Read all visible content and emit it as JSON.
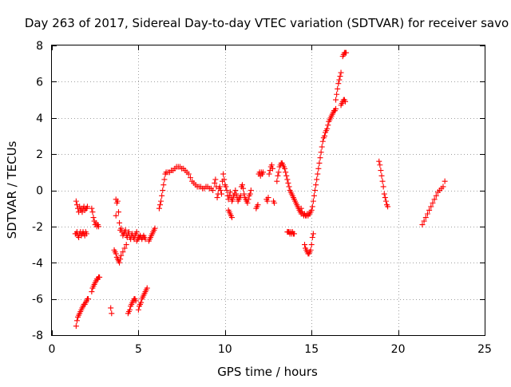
{
  "chart_data": {
    "type": "scatter",
    "title": "Day 263 of 2017, Sidereal Day-to-day VTEC variation (SDTVAR) for receiver savo",
    "xlabel": "GPS time / hours",
    "ylabel": "SDTVAR / TECUs",
    "xlim": [
      0,
      25
    ],
    "ylim": [
      -8,
      8
    ],
    "xticks": [
      0,
      5,
      10,
      15,
      20,
      25
    ],
    "yticks": [
      -8,
      -6,
      -4,
      -2,
      0,
      2,
      4,
      6,
      8
    ],
    "xtick_labels": [
      "0",
      "5",
      "10",
      "15",
      "20",
      "25"
    ],
    "ytick_labels": [
      "-8",
      "-6",
      "-4",
      "-2",
      "0",
      "2",
      "4",
      "6",
      "8"
    ],
    "grid": true,
    "legend": "none",
    "marker": "plus",
    "color": "#ff0000",
    "series": [
      {
        "segments": [
          {
            "x": [
              1.4,
              1.45,
              1.5,
              1.55,
              1.6,
              1.65,
              1.7,
              1.75,
              1.8,
              1.85,
              1.9,
              1.95,
              2.0,
              2.05,
              2.1
            ],
            "y": [
              -7.5,
              -7.2,
              -7.0,
              -6.9,
              -6.8,
              -6.7,
              -6.6,
              -6.5,
              -6.4,
              -6.3,
              -6.3,
              -6.2,
              -6.1,
              -6.0,
              -6.0
            ]
          },
          {
            "x": [
              1.35,
              1.4,
              1.45,
              1.5,
              1.55,
              1.6,
              1.65,
              1.7,
              1.75,
              1.8,
              1.85,
              1.9,
              1.95,
              2.0
            ],
            "y": [
              -2.4,
              -2.4,
              -2.3,
              -2.5,
              -2.6,
              -2.4,
              -2.3,
              -2.5,
              -2.4,
              -2.3,
              -2.4,
              -2.5,
              -2.3,
              -2.4
            ]
          },
          {
            "x": [
              1.4,
              1.45,
              1.5,
              1.55,
              1.6,
              1.65,
              1.7,
              1.75,
              1.8,
              1.85,
              1.9,
              1.95,
              2.0,
              2.05
            ],
            "y": [
              -0.6,
              -0.8,
              -1.0,
              -1.2,
              -0.9,
              -1.1,
              -1.0,
              -1.2,
              -1.0,
              -0.9,
              -1.1,
              -1.0,
              -1.0,
              -0.9
            ]
          },
          {
            "x": [
              2.3,
              2.35,
              2.4,
              2.45,
              2.5,
              2.55,
              2.6,
              2.65,
              2.7,
              2.75
            ],
            "y": [
              -5.6,
              -5.4,
              -5.3,
              -5.2,
              -5.1,
              -5.0,
              -4.9,
              -4.9,
              -4.8,
              -4.8
            ]
          },
          {
            "x": [
              2.3,
              2.35,
              2.4,
              2.45,
              2.5,
              2.55,
              2.6,
              2.65,
              2.7
            ],
            "y": [
              -1.0,
              -1.2,
              -1.5,
              -1.7,
              -1.9,
              -1.8,
              -2.0,
              -1.9,
              -2.0
            ]
          },
          {
            "x": [
              3.4,
              3.45,
              3.7
            ],
            "y": [
              -6.5,
              -6.8,
              -1.4
            ]
          },
          {
            "x": [
              3.7,
              3.75,
              3.8,
              3.85,
              3.9,
              3.95,
              4.0,
              4.05,
              4.1,
              4.15,
              4.2,
              4.25,
              4.3,
              4.35,
              4.4,
              4.45,
              4.5,
              4.55,
              4.6,
              4.65,
              4.7,
              4.75,
              4.8,
              4.85,
              4.9
            ],
            "y": [
              -0.5,
              -0.7,
              -0.6,
              -1.2,
              -1.8,
              -2.2,
              -2.1,
              -2.3,
              -2.5,
              -2.4,
              -2.3,
              -2.2,
              -2.5,
              -2.6,
              -2.4,
              -2.3,
              -2.6,
              -2.7,
              -2.5,
              -2.4,
              -2.6,
              -2.7,
              -2.5,
              -2.4,
              -2.3
            ]
          },
          {
            "x": [
              3.6,
              3.65,
              3.7,
              3.75,
              3.8,
              3.85,
              3.9,
              3.95,
              4.0,
              4.1,
              4.2,
              4.3
            ],
            "y": [
              -3.3,
              -3.4,
              -3.5,
              -3.7,
              -3.8,
              -3.9,
              -4.0,
              -3.8,
              -3.6,
              -3.4,
              -3.2,
              -3.0
            ]
          },
          {
            "x": [
              4.4,
              4.45,
              4.5,
              4.55,
              4.6,
              4.65,
              4.7,
              4.75,
              4.8,
              4.85
            ],
            "y": [
              -6.8,
              -6.7,
              -6.6,
              -6.4,
              -6.3,
              -6.2,
              -6.1,
              -6.0,
              -6.0,
              -6.1
            ]
          },
          {
            "x": [
              4.9,
              4.95,
              5.0,
              5.05,
              5.1,
              5.15,
              5.2,
              5.25,
              5.3,
              5.35,
              5.4
            ],
            "y": [
              -2.8,
              -2.7,
              -2.6,
              -2.6,
              -2.5,
              -2.6,
              -2.7,
              -2.6,
              -2.5,
              -2.6,
              -2.7
            ]
          },
          {
            "x": [
              5.0,
              5.05,
              5.1,
              5.15,
              5.2,
              5.25,
              5.3,
              5.35,
              5.4,
              5.45,
              5.5
            ],
            "y": [
              -6.6,
              -6.4,
              -6.3,
              -6.2,
              -6.0,
              -5.9,
              -5.8,
              -5.7,
              -5.6,
              -5.5,
              -5.4
            ]
          },
          {
            "x": [
              5.6,
              5.65,
              5.7,
              5.75,
              5.8,
              5.85,
              5.9,
              5.95
            ],
            "y": [
              -2.8,
              -2.7,
              -2.6,
              -2.5,
              -2.4,
              -2.3,
              -2.2,
              -2.1
            ]
          },
          {
            "x": [
              6.2,
              6.25,
              6.3,
              6.35,
              6.4,
              6.45,
              6.5,
              6.55,
              6.6,
              6.7,
              6.8,
              6.9,
              7.0,
              7.1,
              7.2,
              7.3,
              7.4,
              7.5,
              7.6,
              7.7,
              7.8,
              7.9,
              8.0,
              8.1,
              8.2,
              8.3,
              8.4,
              8.5,
              8.6,
              8.7,
              8.8,
              8.9,
              9.0,
              9.1,
              9.2,
              9.3
            ],
            "y": [
              -1.0,
              -0.8,
              -0.6,
              -0.3,
              0.0,
              0.3,
              0.6,
              0.9,
              1.0,
              1.0,
              1.0,
              1.1,
              1.1,
              1.2,
              1.3,
              1.3,
              1.3,
              1.2,
              1.2,
              1.1,
              1.0,
              0.9,
              0.7,
              0.5,
              0.4,
              0.3,
              0.2,
              0.2,
              0.2,
              0.1,
              0.1,
              0.2,
              0.2,
              0.1,
              0.1,
              0.0
            ]
          },
          {
            "x": [
              9.4,
              9.45,
              9.5,
              9.55,
              9.6,
              9.65,
              9.7,
              9.75,
              9.8,
              9.85,
              9.9,
              9.95,
              10.0,
              10.05,
              10.1,
              10.15,
              10.2,
              10.25,
              10.3,
              10.35,
              10.4,
              10.45,
              10.5,
              10.55,
              10.6,
              10.65,
              10.7,
              10.75,
              10.8,
              10.85,
              10.9,
              10.95,
              11.0,
              11.05,
              11.1,
              11.15,
              11.2,
              11.25,
              11.3,
              11.35,
              11.4,
              11.45,
              11.5
            ],
            "y": [
              0.4,
              0.6,
              0.2,
              -0.4,
              -0.2,
              0.1,
              0.2,
              0.0,
              -0.2,
              0.5,
              0.9,
              0.6,
              0.3,
              0.2,
              0.0,
              -0.3,
              -0.5,
              -0.3,
              -0.1,
              -0.4,
              -0.6,
              -0.5,
              -0.3,
              -0.2,
              0.0,
              -0.2,
              -0.4,
              -0.6,
              -0.5,
              -0.4,
              -0.3,
              0.2,
              0.3,
              0.1,
              -0.2,
              -0.4,
              -0.5,
              -0.6,
              -0.7,
              -0.5,
              -0.3,
              -0.2,
              0.0
            ]
          },
          {
            "x": [
              10.2,
              10.25,
              10.3,
              10.35,
              10.4
            ],
            "y": [
              -1.1,
              -1.2,
              -1.3,
              -1.4,
              -1.5
            ]
          },
          {
            "x": [
              11.8,
              11.85,
              11.9,
              11.95,
              12.0,
              12.05,
              12.1,
              12.15,
              12.2
            ],
            "y": [
              -1.0,
              -0.9,
              -0.8,
              0.9,
              1.0,
              0.8,
              1.0,
              0.9,
              1.0
            ]
          },
          {
            "x": [
              12.4,
              12.45,
              12.5,
              12.55,
              12.6,
              12.65,
              12.7,
              12.75,
              12.8,
              12.85
            ],
            "y": [
              -0.5,
              -0.6,
              -0.4,
              0.9,
              1.1,
              1.3,
              1.4,
              1.2,
              -0.6,
              -0.7
            ]
          },
          {
            "x": [
              13.0,
              13.05,
              13.1,
              13.15,
              13.2,
              13.25,
              13.3,
              13.35,
              13.4,
              13.45,
              13.5,
              13.55,
              13.6,
              13.65,
              13.7,
              13.75,
              13.8,
              13.85,
              13.9,
              13.95,
              14.0,
              14.05,
              14.1,
              14.15,
              14.2,
              14.25,
              14.3,
              14.35,
              14.4
            ],
            "y": [
              0.5,
              0.8,
              1.0,
              1.3,
              1.4,
              1.5,
              1.5,
              1.4,
              1.3,
              1.2,
              1.0,
              0.8,
              0.6,
              0.4,
              0.2,
              0.0,
              -0.1,
              -0.2,
              -0.3,
              -0.4,
              -0.5,
              -0.6,
              -0.7,
              -0.8,
              -0.9,
              -1.0,
              -1.1,
              -1.2,
              -1.3
            ]
          },
          {
            "x": [
              13.6,
              13.65,
              13.7,
              13.75,
              13.8,
              13.85,
              13.9,
              13.95,
              14.0
            ],
            "y": [
              -2.3,
              -2.3,
              -2.3,
              -2.4,
              -2.3,
              -2.4,
              -2.3,
              -2.4,
              -2.4
            ]
          },
          {
            "x": [
              14.4,
              14.45,
              14.5,
              14.55,
              14.6,
              14.65,
              14.7,
              14.75,
              14.8,
              14.85,
              14.9,
              14.95,
              15.0,
              15.05,
              15.1,
              15.15,
              15.2,
              15.25,
              15.3,
              15.35,
              15.4,
              15.45,
              15.5,
              15.55,
              15.6,
              15.65,
              15.7,
              15.75,
              15.8,
              15.85,
              15.9,
              15.95,
              16.0,
              16.05,
              16.1,
              16.15,
              16.2,
              16.25,
              16.3,
              16.35,
              16.4
            ],
            "y": [
              -1.0,
              -1.2,
              -1.3,
              -1.4,
              -1.3,
              -1.4,
              -1.4,
              -1.3,
              -1.4,
              -1.3,
              -1.3,
              -1.2,
              -1.1,
              -0.9,
              -0.6,
              -0.3,
              0.0,
              0.3,
              0.6,
              0.9,
              1.2,
              1.5,
              1.8,
              2.1,
              2.4,
              2.7,
              2.9,
              3.0,
              3.2,
              3.3,
              3.4,
              3.6,
              3.8,
              3.9,
              4.0,
              4.1,
              4.2,
              4.3,
              4.4,
              4.4,
              4.5
            ]
          },
          {
            "x": [
              14.6,
              14.65,
              14.7,
              14.75,
              14.8,
              14.85,
              14.9,
              14.95,
              15.0,
              15.05,
              15.1
            ],
            "y": [
              -3.0,
              -3.2,
              -3.3,
              -3.4,
              -3.5,
              -3.5,
              -3.4,
              -3.3,
              -3.0,
              -2.6,
              -2.4
            ]
          },
          {
            "x": [
              16.4,
              16.45,
              16.5,
              16.55,
              16.6,
              16.65,
              16.7
            ],
            "y": [
              5.0,
              5.3,
              5.6,
              5.9,
              6.1,
              6.3,
              6.5
            ]
          },
          {
            "x": [
              16.7,
              16.75,
              16.8,
              16.85,
              16.9,
              16.95
            ],
            "y": [
              4.7,
              4.8,
              4.9,
              5.0,
              5.0,
              4.9
            ]
          },
          {
            "x": [
              16.8,
              16.85,
              16.9,
              16.95,
              17.0
            ],
            "y": [
              7.4,
              7.5,
              7.6,
              7.6,
              7.6
            ]
          },
          {
            "x": [
              18.9,
              18.95,
              19.0,
              19.05,
              19.1,
              19.15,
              19.2,
              19.25,
              19.3,
              19.35,
              19.4
            ],
            "y": [
              1.6,
              1.4,
              1.1,
              0.8,
              0.5,
              0.2,
              -0.2,
              -0.4,
              -0.6,
              -0.8,
              -0.9
            ]
          },
          {
            "x": [
              21.4,
              21.5,
              21.6,
              21.7,
              21.8,
              21.9,
              22.0,
              22.1,
              22.2,
              22.3,
              22.4,
              22.5,
              22.6,
              22.7
            ],
            "y": [
              -1.9,
              -1.7,
              -1.5,
              -1.3,
              -1.1,
              -0.9,
              -0.7,
              -0.5,
              -0.3,
              -0.1,
              0.0,
              0.1,
              0.2,
              0.5
            ]
          }
        ]
      }
    ]
  }
}
